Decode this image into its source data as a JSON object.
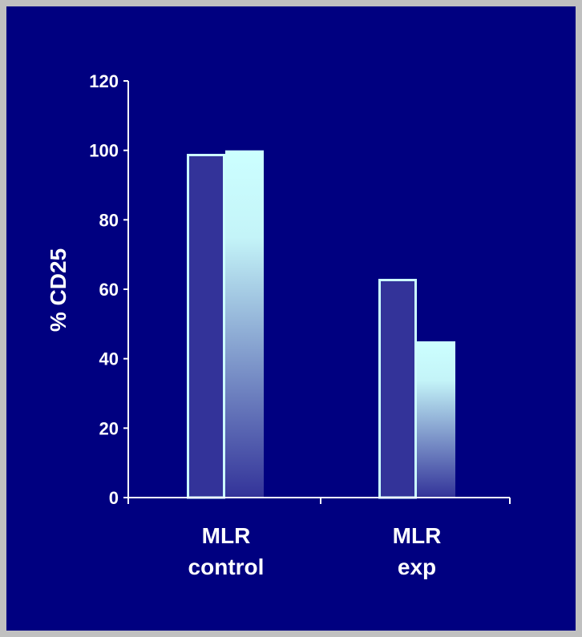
{
  "chart_data": {
    "type": "bar",
    "title": "",
    "ylabel": "% CD25",
    "xlabel": "",
    "ylim": [
      0,
      120
    ],
    "yticks": [
      0,
      20,
      40,
      60,
      80,
      100,
      120
    ],
    "grid": false,
    "legend": "none",
    "categories": [
      [
        "MLR",
        "control"
      ],
      [
        "MLR",
        "exp"
      ]
    ],
    "series": [
      {
        "values": [
          99,
          63
        ],
        "style": "solid",
        "color": "#333399",
        "outline": "#ccffff"
      },
      {
        "values": [
          100,
          45
        ],
        "style": "gradient",
        "color_top": "#ccffff",
        "color_bottom": "#333399"
      }
    ]
  },
  "colors": {
    "background": "#000080",
    "border": "#c0c0c0",
    "axis": "#ffffff",
    "text": "#ffffff"
  }
}
